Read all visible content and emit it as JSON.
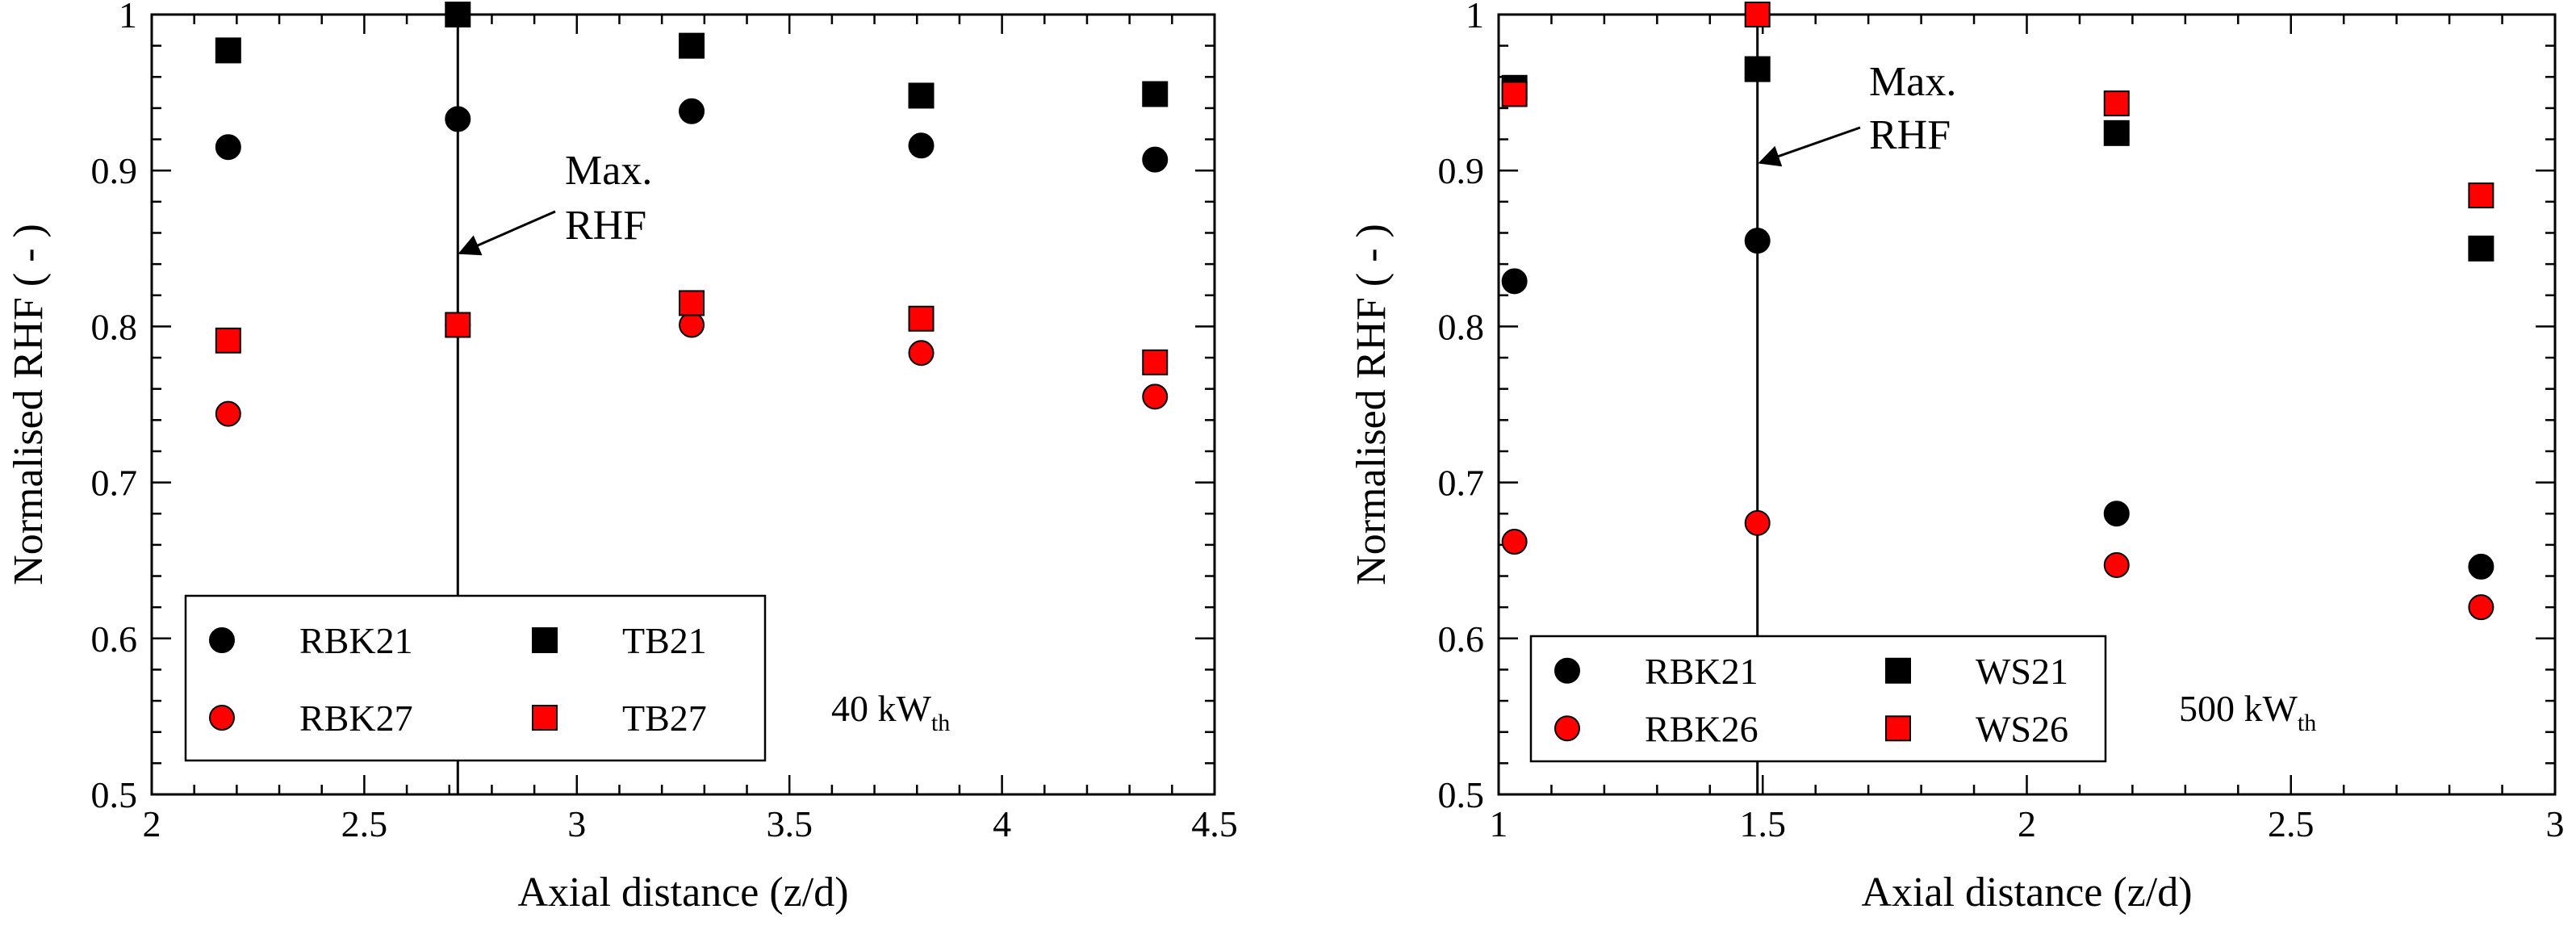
{
  "chart_data": [
    {
      "type": "scatter",
      "xlabel": "Axial distance (z/d)",
      "ylabel": "Normalised RHF ( - )",
      "xlim": [
        2,
        4.5
      ],
      "ylim": [
        0.5,
        1.0
      ],
      "x_ticks": [
        "2",
        "2.5",
        "3",
        "3.5",
        "4",
        "4.5"
      ],
      "y_ticks": [
        "0.5",
        "0.6",
        "0.7",
        "0.8",
        "0.9",
        "1"
      ],
      "power_label": "40 kW",
      "power_sub": "th",
      "annotation": {
        "line1": "Max.",
        "line2": "RHF",
        "x_max": 2.72
      },
      "series": [
        {
          "name": "RBK21",
          "marker": "circle",
          "color": "#000000",
          "x": [
            2.18,
            2.72,
            3.27,
            3.81,
            4.36
          ],
          "y": [
            0.915,
            0.933,
            0.938,
            0.916,
            0.907
          ]
        },
        {
          "name": "TB21",
          "marker": "square",
          "color": "#000000",
          "x": [
            2.18,
            2.72,
            3.27,
            3.81,
            4.36
          ],
          "y": [
            0.977,
            1.0,
            0.98,
            0.948,
            0.949
          ]
        },
        {
          "name": "RBK27",
          "marker": "circle",
          "color": "#ff0000",
          "x": [
            2.18,
            2.72,
            3.27,
            3.81,
            4.36
          ],
          "y": [
            0.744,
            0.801,
            0.801,
            0.783,
            0.755
          ]
        },
        {
          "name": "TB27",
          "marker": "square",
          "color": "#ff0000",
          "x": [
            2.18,
            2.72,
            3.27,
            3.81,
            4.36
          ],
          "y": [
            0.791,
            0.801,
            0.815,
            0.805,
            0.777
          ]
        }
      ]
    },
    {
      "type": "scatter",
      "xlabel": "Axial distance (z/d)",
      "ylabel": "Normalised RHF ( - )",
      "xlim": [
        1,
        3
      ],
      "ylim": [
        0.5,
        1.0
      ],
      "x_ticks": [
        "1",
        "1.5",
        "2",
        "2.5",
        "3"
      ],
      "y_ticks": [
        "0.5",
        "0.6",
        "0.7",
        "0.8",
        "0.9",
        "1"
      ],
      "power_label": "500 kW",
      "power_sub": "th",
      "annotation": {
        "line1": "Max.",
        "line2": "RHF",
        "x_max": 1.49
      },
      "series": [
        {
          "name": "RBK21",
          "marker": "circle",
          "color": "#000000",
          "x": [
            1.03,
            1.49,
            2.17,
            2.86
          ],
          "y": [
            0.829,
            0.855,
            0.68,
            0.646
          ]
        },
        {
          "name": "WS21",
          "marker": "square",
          "color": "#000000",
          "x": [
            1.03,
            1.49,
            2.17,
            2.86
          ],
          "y": [
            0.953,
            0.965,
            0.924,
            0.85
          ]
        },
        {
          "name": "RBK26",
          "marker": "circle",
          "color": "#ff0000",
          "x": [
            1.03,
            1.49,
            2.17,
            2.86
          ],
          "y": [
            0.662,
            0.674,
            0.647,
            0.62
          ]
        },
        {
          "name": "WS26",
          "marker": "square",
          "color": "#ff0000",
          "x": [
            1.03,
            1.49,
            2.17,
            2.86
          ],
          "y": [
            0.949,
            1.0,
            0.943,
            0.884
          ]
        }
      ]
    }
  ]
}
